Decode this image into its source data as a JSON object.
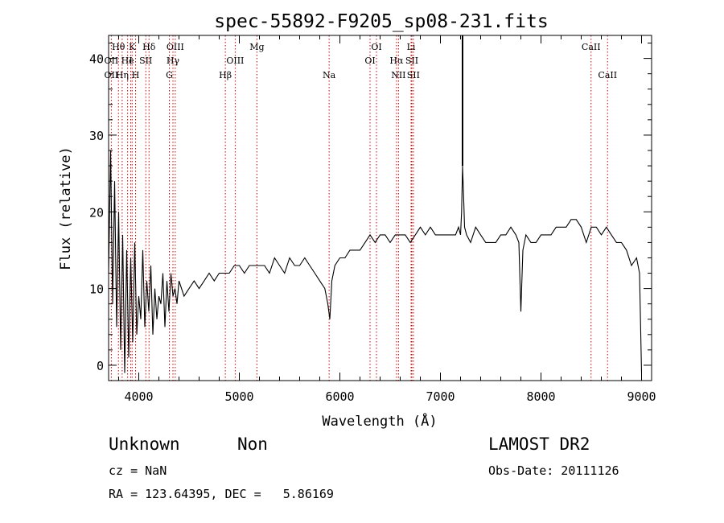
{
  "chart_data": {
    "type": "line",
    "title": "spec-55892-F9205_sp08-231.fits",
    "xlabel": "Wavelength (Å)",
    "ylabel": "Flux (relative)",
    "xlim": [
      3700,
      9100
    ],
    "ylim": [
      -2,
      43
    ],
    "xticks": [
      4000,
      5000,
      6000,
      7000,
      8000,
      9000
    ],
    "yticks": [
      0,
      10,
      20,
      30,
      40
    ],
    "grid": false,
    "series": [
      {
        "x": [
          3700,
          3720,
          3740,
          3760,
          3780,
          3800,
          3820,
          3840,
          3860,
          3880,
          3900,
          3920,
          3940,
          3960,
          3980,
          4000,
          4020,
          4040,
          4060,
          4080,
          4100,
          4120,
          4140,
          4160,
          4180,
          4200,
          4220,
          4240,
          4260,
          4280,
          4300,
          4320,
          4340,
          4360,
          4380,
          4400,
          4450,
          4500,
          4550,
          4600,
          4650,
          4700,
          4750,
          4800,
          4850,
          4900,
          4950,
          5000,
          5050,
          5100,
          5150,
          5200,
          5250,
          5300,
          5350,
          5400,
          5450,
          5500,
          5550,
          5600,
          5650,
          5700,
          5750,
          5800,
          5850,
          5880,
          5900,
          5920,
          5950,
          6000,
          6050,
          6100,
          6150,
          6200,
          6250,
          6300,
          6350,
          6400,
          6450,
          6500,
          6550,
          6600,
          6650,
          6700,
          6750,
          6800,
          6850,
          6900,
          6950,
          7000,
          7050,
          7100,
          7150,
          7180,
          7200,
          7210,
          7220,
          7230,
          7240,
          7260,
          7300,
          7350,
          7400,
          7450,
          7500,
          7550,
          7600,
          7650,
          7700,
          7750,
          7780,
          7800,
          7820,
          7850,
          7900,
          7950,
          8000,
          8050,
          8100,
          8150,
          8200,
          8250,
          8300,
          8350,
          8400,
          8450,
          8500,
          8550,
          8600,
          8650,
          8700,
          8750,
          8800,
          8850,
          8900,
          8950,
          8980,
          9000
        ],
        "y": [
          12,
          28,
          8,
          24,
          5,
          20,
          2,
          17,
          -1,
          15,
          1,
          14,
          3,
          16,
          4,
          9,
          6,
          15,
          5,
          11,
          7,
          13,
          4,
          10,
          6,
          9,
          8,
          12,
          5,
          11,
          7,
          12,
          9,
          10,
          8,
          11,
          9,
          10,
          11,
          10,
          11,
          12,
          11,
          12,
          12,
          12,
          13,
          13,
          12,
          13,
          13,
          13,
          13,
          12,
          14,
          13,
          12,
          14,
          13,
          13,
          14,
          13,
          12,
          11,
          10,
          8,
          6,
          11,
          13,
          14,
          14,
          15,
          15,
          15,
          16,
          17,
          16,
          17,
          17,
          16,
          17,
          17,
          17,
          16,
          17,
          18,
          17,
          18,
          17,
          17,
          17,
          17,
          17,
          18,
          17,
          20,
          26,
          22,
          18,
          17,
          16,
          18,
          17,
          16,
          16,
          16,
          17,
          17,
          18,
          17,
          16,
          7,
          15,
          17,
          16,
          16,
          17,
          17,
          17,
          18,
          18,
          18,
          19,
          19,
          18,
          16,
          18,
          18,
          17,
          18,
          17,
          16,
          16,
          15,
          13,
          14,
          12,
          -1
        ]
      }
    ],
    "line_markers": [
      {
        "label": "Hθ",
        "x": 3798,
        "row": 0
      },
      {
        "label": "K",
        "x": 3934,
        "row": 0
      },
      {
        "label": "Hδ",
        "x": 4102,
        "row": 0
      },
      {
        "label": "OIII",
        "x": 4363,
        "row": 0
      },
      {
        "label": "Mg",
        "x": 5175,
        "row": 0
      },
      {
        "label": "OI",
        "x": 6364,
        "row": 0
      },
      {
        "label": "Li",
        "x": 6708,
        "row": 0
      },
      {
        "label": "CaII",
        "x": 8498,
        "row": 0
      },
      {
        "label": "OII",
        "x": 3727,
        "row": 1
      },
      {
        "label": "He",
        "x": 3889,
        "row": 1
      },
      {
        "label": "I",
        "x": 3920,
        "row": 1
      },
      {
        "label": "SII",
        "x": 4070,
        "row": 1
      },
      {
        "label": "Hγ",
        "x": 4340,
        "row": 1
      },
      {
        "label": "OIII",
        "x": 4959,
        "row": 1
      },
      {
        "label": "OI",
        "x": 6300,
        "row": 1
      },
      {
        "label": "Hα",
        "x": 6563,
        "row": 1
      },
      {
        "label": "SII",
        "x": 6716,
        "row": 1
      },
      {
        "label": "OII",
        "x": 3727,
        "row": 2
      },
      {
        "label": "Hη",
        "x": 3835,
        "row": 2
      },
      {
        "label": "H",
        "x": 3968,
        "row": 2
      },
      {
        "label": "G",
        "x": 4304,
        "row": 2
      },
      {
        "label": "Hβ",
        "x": 4861,
        "row": 2
      },
      {
        "label": "Na",
        "x": 5893,
        "row": 2
      },
      {
        "label": "NII",
        "x": 6583,
        "row": 2
      },
      {
        "label": "SII",
        "x": 6731,
        "row": 2
      },
      {
        "label": "CaII",
        "x": 8662,
        "row": 2
      }
    ],
    "line_colors": {
      "spectrum": "#000000",
      "markers": "#cc0000",
      "axes": "#000000"
    }
  },
  "info": {
    "class": "Unknown",
    "subclass": "Non",
    "survey": "LAMOST DR2",
    "cz": "cz = NaN",
    "obs_date": "Obs-Date: 20111126",
    "coords": "RA = 123.64395, DEC =   5.86169"
  }
}
